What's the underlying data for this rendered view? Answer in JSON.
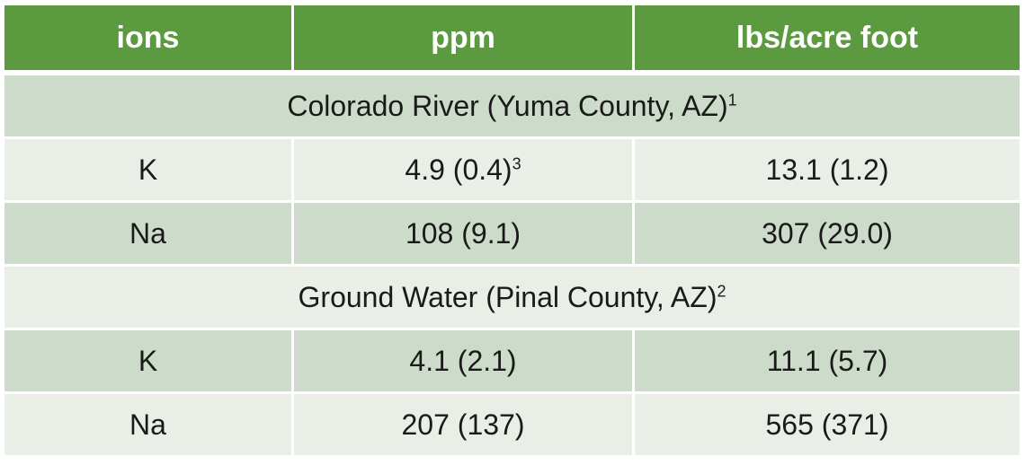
{
  "table": {
    "headers": [
      "ions",
      "ppm",
      "lbs/acre foot"
    ],
    "sections": [
      {
        "title": "Colorado River (Yuma County, AZ)",
        "title_sup": "1",
        "rows": [
          {
            "ion": "K",
            "ppm": "4.9 (0.4)",
            "ppm_sup": "3",
            "lbs": "13.1 (1.2)"
          },
          {
            "ion": "Na",
            "ppm": "108 (9.1)",
            "ppm_sup": "",
            "lbs": "307 (29.0)"
          }
        ]
      },
      {
        "title": "Ground Water (Pinal County, AZ)",
        "title_sup": "2",
        "rows": [
          {
            "ion": "K",
            "ppm": "4.1 (2.1)",
            "ppm_sup": "",
            "lbs": "11.1 (5.7)"
          },
          {
            "ion": "Na",
            "ppm": "207 (137)",
            "ppm_sup": "",
            "lbs": "565 (371)"
          }
        ]
      }
    ]
  },
  "colors": {
    "header_bg": "#5c9a3f",
    "band_bg": "#cddcca",
    "light_bg": "#e9eee7"
  }
}
